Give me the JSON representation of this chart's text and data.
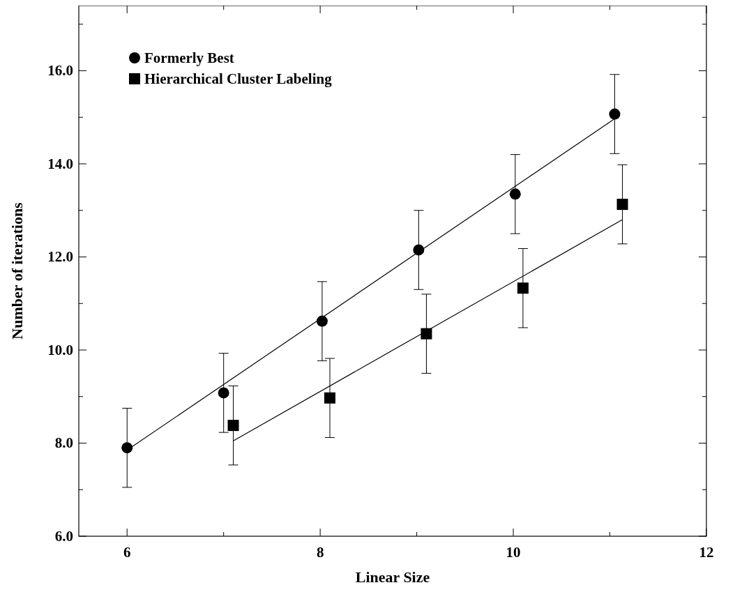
{
  "chart_data": {
    "type": "scatter",
    "xlabel": "Linear Size",
    "ylabel": "Number of iterations",
    "xlim": [
      5.5,
      12
    ],
    "ylim": [
      6,
      17.4
    ],
    "xticks": [
      6,
      {
        "value": 7,
        "label": null
      },
      8,
      {
        "value": 9,
        "label": null
      },
      10,
      {
        "value": 11,
        "label": null
      },
      12
    ],
    "yticks": [
      {
        "value": 6,
        "label": "6.0"
      },
      {
        "value": 7,
        "label": null
      },
      {
        "value": 8,
        "label": "8.0"
      },
      {
        "value": 9,
        "label": null
      },
      {
        "value": 10,
        "label": "10.0"
      },
      {
        "value": 11,
        "label": null
      },
      {
        "value": 12,
        "label": "12.0"
      },
      {
        "value": 13,
        "label": null
      },
      {
        "value": 14,
        "label": "14.0"
      },
      {
        "value": 15,
        "label": null
      },
      {
        "value": 16,
        "label": "16.0"
      },
      {
        "value": 17,
        "label": null
      }
    ],
    "legend": "top left",
    "grid": false,
    "series": [
      {
        "name": "Formerly Best",
        "color": "#000000",
        "marker": "circle",
        "x": [
          6,
          7,
          8.02,
          9.02,
          10.02,
          11.05
        ],
        "values": [
          7.9,
          9.08,
          10.62,
          12.15,
          13.35,
          15.07
        ],
        "errors": [
          0.85,
          0.85,
          0.85,
          0.85,
          0.85,
          0.85
        ]
      },
      {
        "name": "Hierarchical Cluster Labeling",
        "color": "#000000",
        "marker": "square",
        "x": [
          7.1,
          8.1,
          9.1,
          10.1,
          11.13
        ],
        "values": [
          8.38,
          8.97,
          10.35,
          11.33,
          13.13
        ],
        "errors": [
          0.85,
          0.85,
          0.85,
          0.85,
          0.85
        ]
      },
      {
        "type": "line",
        "color": "#000000",
        "marker": "none",
        "x": [
          6,
          11.05
        ],
        "values": [
          7.85,
          14.97
        ]
      },
      {
        "type": "line",
        "color": "#000000",
        "marker": "none",
        "x": [
          7.1,
          11.13
        ],
        "values": [
          8.05,
          12.8
        ]
      }
    ]
  }
}
